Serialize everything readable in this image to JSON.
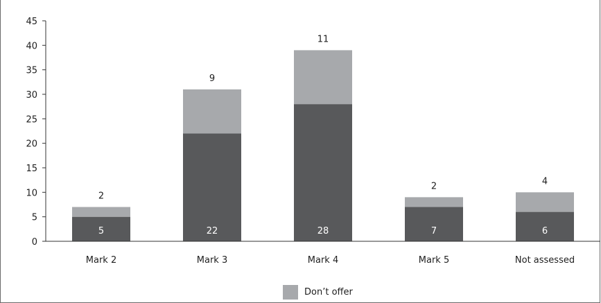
{
  "colors": {
    "dark_series": "#58595b",
    "light_series": "#a7a9ac",
    "axis": "#333333",
    "text": "#1e1e1e"
  },
  "chart_data": {
    "type": "bar",
    "stacked": true,
    "categories": [
      "Mark 2",
      "Mark 3",
      "Mark 4",
      "Mark 5",
      "Not assessed"
    ],
    "series": [
      {
        "values": [
          5,
          22,
          28,
          7,
          6
        ],
        "color": "#58595b"
      },
      {
        "name": "Don’t offer",
        "values": [
          2,
          9,
          11,
          2,
          4
        ],
        "color": "#a7a9ac"
      }
    ],
    "ylim": [
      0,
      45
    ],
    "yticks": [
      0,
      5,
      10,
      15,
      20,
      25,
      30,
      35,
      40,
      45
    ],
    "xlabel": "",
    "ylabel": "",
    "title": "",
    "grid": false,
    "legend_position": "bottom"
  },
  "legend": {
    "label": "Don’t offer"
  }
}
